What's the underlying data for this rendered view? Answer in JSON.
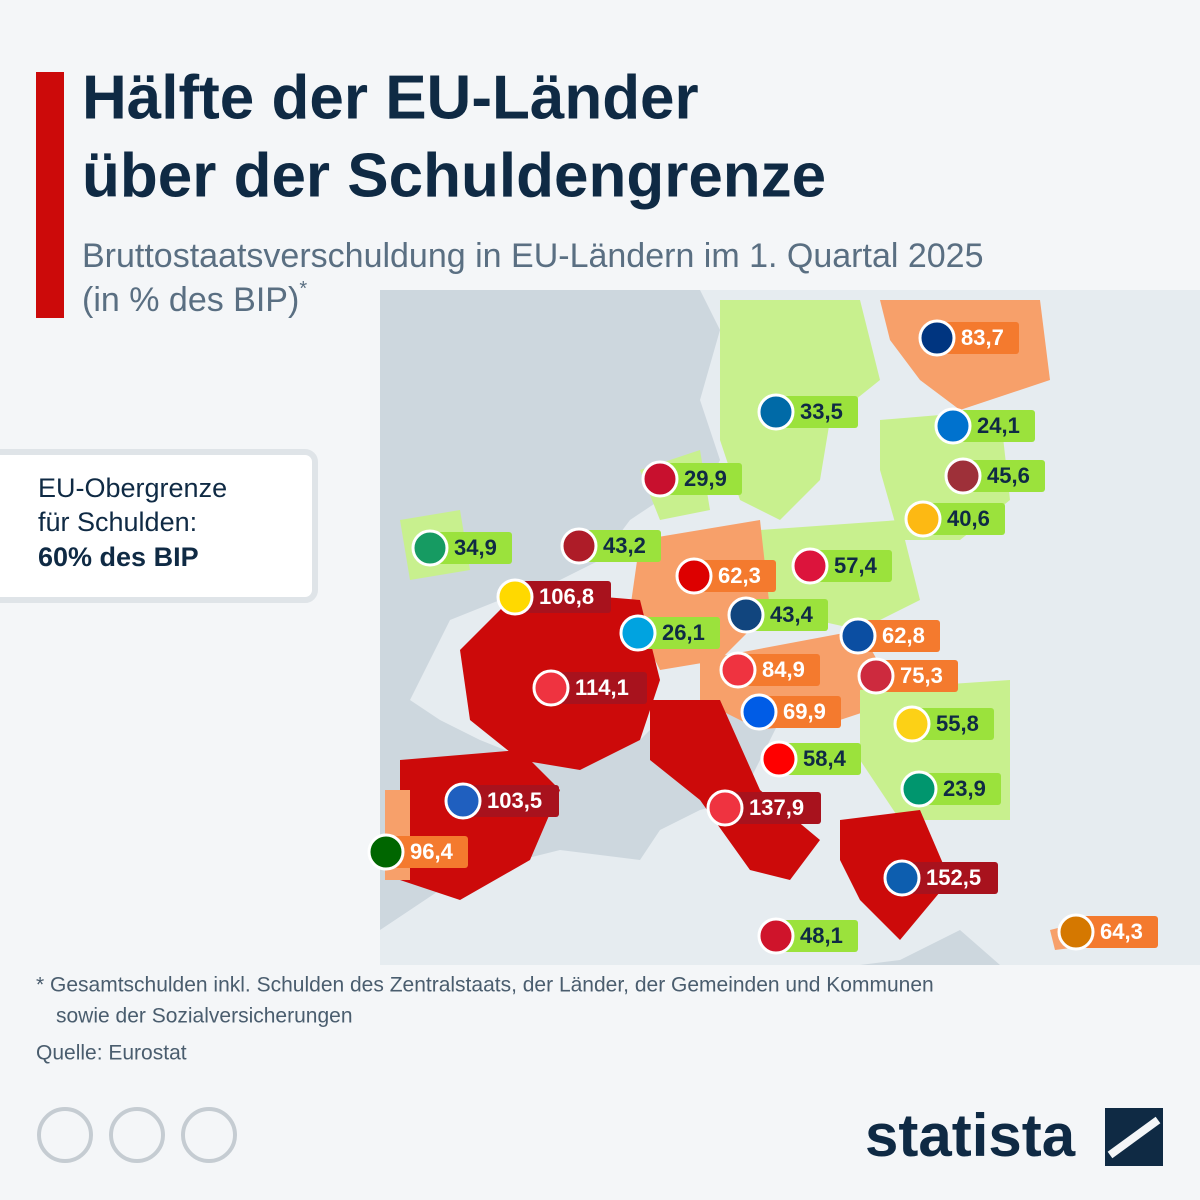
{
  "header": {
    "title_lines": [
      "Hälfte der EU-Länder",
      "über der Schuldengrenze"
    ],
    "subtitle_lines": [
      "Bruttostaatsverschuldung in EU-Ländern im 1. Quartal 2025",
      "(in % des BIP)"
    ],
    "subtitle_marker": "*"
  },
  "callout": {
    "lines": [
      "EU-Obergrenze",
      "für Schulden:"
    ],
    "emphasis": "60% des BIP"
  },
  "map": {
    "groups": [
      {
        "area_color": "#cc0a0a",
        "label_color": "#a8121d",
        "text_color": "#ffffff",
        "values": [
          106.8,
          114.1,
          103.5,
          137.9,
          152.5
        ],
        "value_labels": [
          "106,8",
          "114,1",
          "103,5",
          "137,9",
          "152,5"
        ]
      },
      {
        "area_color": "#f7a06a",
        "label_color": "#f47a2e",
        "text_color": "#ffffff",
        "values": [
          83.7,
          62.3,
          62.8,
          84.9,
          75.3,
          69.9,
          96.4,
          64.3
        ],
        "value_labels": [
          "83,7",
          "62,3",
          "62,8",
          "84,9",
          "75,3",
          "69,9",
          "96,4",
          "64,3"
        ]
      },
      {
        "area_color": "#c8f08e",
        "label_color": "#9be23c",
        "text_color": "#0f2a44",
        "values": [
          33.5,
          24.1,
          29.9,
          45.6,
          40.6,
          34.9,
          43.2,
          57.4,
          43.4,
          26.1,
          55.8,
          58.4,
          23.9,
          48.1
        ],
        "value_labels": [
          "33,5",
          "24,1",
          "29,9",
          "45,6",
          "40,6",
          "34,9",
          "43,2",
          "57,4",
          "43,4",
          "26,1",
          "55,8",
          "58,4",
          "23,9",
          "48,1"
        ]
      }
    ]
  },
  "footnote_lines": [
    "* Gesamtschulden inkl. Schulden des Zentralstaats, der Länder, der Gemeinden und Kommunen",
    "sowie der Sozialversicherungen"
  ],
  "source": "Quelle: Eurostat",
  "brand": "statista"
}
